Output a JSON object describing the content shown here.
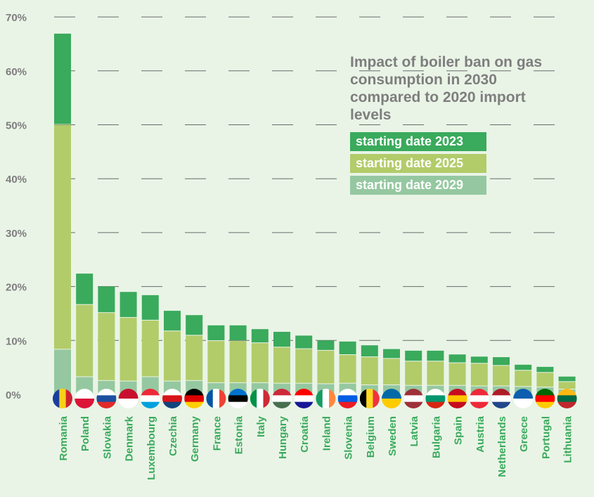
{
  "chart_data": {
    "type": "bar",
    "stacked": true,
    "title": "Impact of boiler ban on gas consumption in 2030 compared to 2020 import levels",
    "ylim": [
      0,
      70
    ],
    "yticks": [
      "0%",
      "10%",
      "20%",
      "30%",
      "40%",
      "50%",
      "60%",
      "70%"
    ],
    "categories": [
      "Romania",
      "Poland",
      "Slovakia",
      "Denmark",
      "Luxembourg",
      "Czechia",
      "Germany",
      "France",
      "Estonia",
      "Italy",
      "Hungary",
      "Croatia",
      "Ireland",
      "Slovenia",
      "Belgium",
      "Sweden",
      "Latvia",
      "Bulgaria",
      "Spain",
      "Austria",
      "Netherlands",
      "Greece",
      "Portugal",
      "Lithuania"
    ],
    "series": [
      {
        "name": "starting date 2029",
        "color": "#95c8a0",
        "values": [
          8.3,
          3.2,
          2.5,
          2.4,
          3.2,
          2.4,
          2.5,
          2.1,
          2.1,
          2.1,
          2.0,
          2.0,
          1.9,
          2.0,
          1.7,
          1.7,
          1.6,
          1.6,
          1.6,
          1.5,
          1.5,
          1.4,
          1.3,
          0.9
        ]
      },
      {
        "name": "starting date 2025",
        "color": "#b2cc6a",
        "values": [
          41.7,
          13.4,
          12.6,
          11.8,
          10.5,
          9.3,
          8.4,
          7.8,
          7.8,
          7.4,
          6.7,
          6.4,
          6.2,
          5.3,
          5.2,
          4.9,
          4.5,
          4.5,
          4.2,
          4.2,
          3.8,
          3.0,
          2.7,
          1.4
        ]
      },
      {
        "name": "starting date 2023",
        "color": "#3aaa5c",
        "values": [
          16.9,
          5.8,
          4.9,
          4.8,
          4.7,
          3.8,
          3.8,
          2.9,
          2.9,
          2.6,
          2.9,
          2.5,
          1.9,
          2.5,
          2.2,
          1.8,
          2.0,
          2.0,
          1.6,
          1.3,
          1.6,
          1.1,
          1.1,
          1.0
        ]
      }
    ],
    "legend_placement": "top-right",
    "grid": true
  },
  "flags": {
    "Romania": [
      "#1a3e9c",
      "#f7d117",
      "#cf2133"
    ],
    "Poland": [
      "#ffffff",
      "#dc1438"
    ],
    "Slovakia": [
      "#ffffff",
      "#1c4fa0",
      "#e12a2a"
    ],
    "Denmark": [
      "#c8102e",
      "#ffffff"
    ],
    "Luxembourg": [
      "#ed2939",
      "#ffffff",
      "#00a1de"
    ],
    "Czechia": [
      "#ffffff",
      "#d7141a",
      "#11457e"
    ],
    "Germany": [
      "#000000",
      "#dd0000",
      "#ffce00"
    ],
    "France": [
      "#0055a4",
      "#ffffff",
      "#ef4135"
    ],
    "Estonia": [
      "#0072ce",
      "#000000",
      "#ffffff"
    ],
    "Italy": [
      "#009246",
      "#ffffff",
      "#ce2b37"
    ],
    "Hungary": [
      "#ce2939",
      "#ffffff",
      "#477050"
    ],
    "Croatia": [
      "#ff0000",
      "#ffffff",
      "#171796"
    ],
    "Ireland": [
      "#169b62",
      "#ffffff",
      "#ff883e"
    ],
    "Slovenia": [
      "#ffffff",
      "#005ce5",
      "#ed1c24"
    ],
    "Belgium": [
      "#000000",
      "#fdda24",
      "#ef3340"
    ],
    "Sweden": [
      "#006aa7",
      "#fecc00"
    ],
    "Latvia": [
      "#9e3039",
      "#ffffff",
      "#9e3039"
    ],
    "Bulgaria": [
      "#ffffff",
      "#00966e",
      "#d62612"
    ],
    "Spain": [
      "#c60b1e",
      "#ffc400",
      "#c60b1e"
    ],
    "Austria": [
      "#ed2939",
      "#ffffff",
      "#ed2939"
    ],
    "Netherlands": [
      "#ae1c28",
      "#ffffff",
      "#21468b"
    ],
    "Greece": [
      "#0d5eaf",
      "#ffffff"
    ],
    "Portugal": [
      "#006600",
      "#ff0000",
      "#ffcc00"
    ],
    "Lithuania": [
      "#fdb913",
      "#006a44",
      "#c1272d"
    ]
  },
  "colors": {
    "background": "#e9f4e6",
    "grid": "#6b6b6b",
    "axis_text": "#7e7e7e",
    "category_text": "#3aaa5c"
  }
}
